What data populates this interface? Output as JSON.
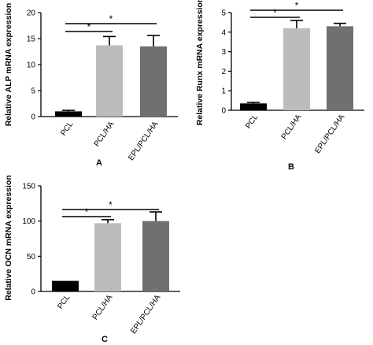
{
  "colors": {
    "PCL": "#000000",
    "PCL/HA": "#bcbcbc",
    "EPL/PCL/HA": "#707070",
    "axis": "#000000"
  },
  "chart_data": [
    {
      "type": "bar",
      "panel": "A",
      "ylabel": "Relative ALP mRNA expression",
      "categories": [
        "PCL",
        "PCL/HA",
        "EPL/PCL/HA"
      ],
      "values": [
        1.0,
        13.7,
        13.5
      ],
      "errors": [
        0.2,
        1.7,
        2.1
      ],
      "ylim": [
        0,
        20
      ],
      "yticks": [
        0,
        5,
        10,
        15,
        20
      ],
      "significance": [
        {
          "from": "PCL",
          "to": "PCL/HA",
          "label": "*"
        },
        {
          "from": "PCL",
          "to": "EPL/PCL/HA",
          "label": "*"
        }
      ]
    },
    {
      "type": "bar",
      "panel": "B",
      "ylabel": "Relative Runx mRNA expression",
      "categories": [
        "PCL",
        "PCL/HA",
        "EPL/PCL/HA"
      ],
      "values": [
        0.35,
        4.2,
        4.3
      ],
      "errors": [
        0.05,
        0.4,
        0.15
      ],
      "ylim": [
        0,
        5
      ],
      "yticks": [
        0,
        1,
        2,
        3,
        4,
        5
      ],
      "significance": [
        {
          "from": "PCL",
          "to": "PCL/HA",
          "label": "*"
        },
        {
          "from": "PCL",
          "to": "EPL/PCL/HA",
          "label": "*"
        }
      ]
    },
    {
      "type": "bar",
      "panel": "C",
      "ylabel": "Relative OCN mRNA expression",
      "categories": [
        "PCL",
        "PCL/HA",
        "EPL/PCL/HA"
      ],
      "values": [
        15,
        97,
        100
      ],
      "errors": [
        0,
        5,
        13
      ],
      "ylim": [
        0,
        150
      ],
      "yticks": [
        0,
        50,
        100,
        150
      ],
      "significance": [
        {
          "from": "PCL",
          "to": "PCL/HA",
          "label": "*"
        },
        {
          "from": "PCL",
          "to": "EPL/PCL/HA",
          "label": "*"
        }
      ]
    }
  ]
}
